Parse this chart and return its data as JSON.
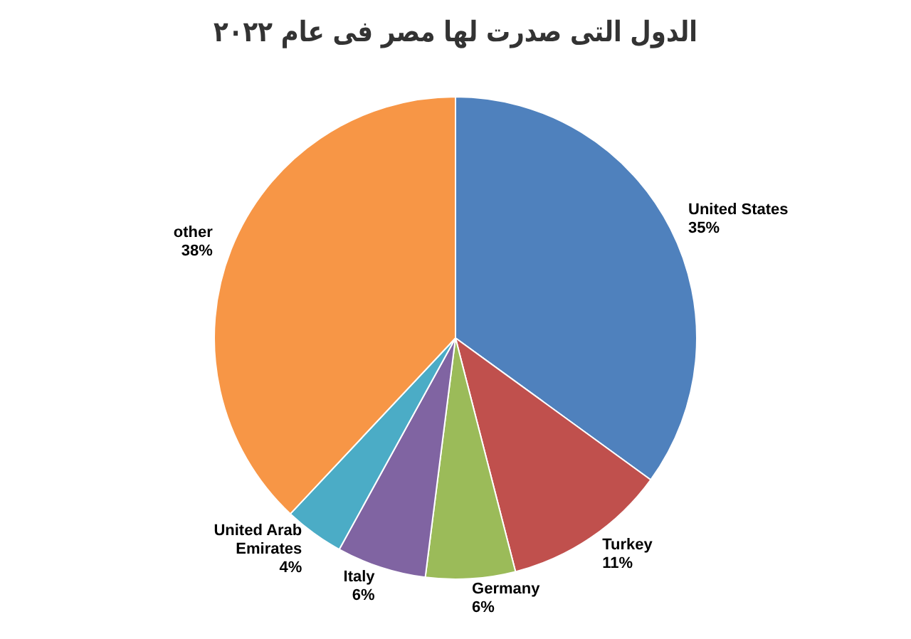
{
  "chart_data": {
    "type": "pie",
    "title": "الدول التى صدرت لها مصر فى عام ٢٠٢٢",
    "categories": [
      "United States",
      "Turkey",
      "Germany",
      "Italy",
      "United Arab Emirates",
      "other"
    ],
    "values": [
      35,
      11,
      6,
      6,
      4,
      38
    ],
    "value_labels": [
      "35%",
      "11%",
      "6%",
      "6%",
      "4%",
      "38%"
    ],
    "colors": [
      "#4f81bd",
      "#c0504d",
      "#9bbb59",
      "#8064a2",
      "#4bacc6",
      "#f79646"
    ],
    "legend": false
  }
}
